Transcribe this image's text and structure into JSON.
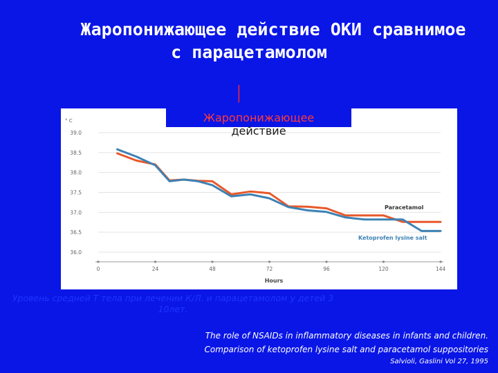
{
  "slide": {
    "title_line1": "Жаропонижающее действие ОКИ сравнимое",
    "title_line2": "с парацетамолом",
    "callout_line1": "Жаропонижающее",
    "callout_line2": "действие",
    "caption": "Уровень средней Т тела при лечении К/Л. и парацетамолом у детей 3 10лет.",
    "reference_line1": "The role of NSAIDs in inflammatory diseases in infants and children.",
    "reference_line2": "Comparison of ketoprofen lysine salt and paracetamol suppositories",
    "reference_line3": "Salvioli, Gaslini Vol 27, 1995"
  },
  "colors": {
    "background": "#0a16e6",
    "paracetamol": "#e8582a",
    "ketoprofen": "#3d82b4"
  },
  "chart_data": {
    "type": "line",
    "title": "",
    "xlabel": "Hours",
    "ylabel": "° C",
    "xlim": [
      0,
      144
    ],
    "ylim": [
      36.0,
      39.0
    ],
    "x_ticks": [
      0,
      24,
      48,
      72,
      96,
      120,
      144
    ],
    "y_ticks": [
      "39.0",
      "38.5",
      "38.0",
      "37.5",
      "37.0",
      "36.5",
      "36.0"
    ],
    "grid": "horizontal",
    "series": [
      {
        "name": "Paracetamol",
        "x": [
          8,
          16,
          24,
          30,
          36,
          42,
          48,
          56,
          64,
          72,
          80,
          88,
          96,
          104,
          112,
          120,
          128,
          136,
          144
        ],
        "y": [
          38.48,
          38.3,
          38.2,
          37.8,
          37.82,
          37.79,
          37.78,
          37.45,
          37.52,
          37.48,
          37.15,
          37.14,
          37.1,
          36.92,
          36.92,
          36.92,
          36.76,
          36.76,
          36.76
        ]
      },
      {
        "name": "Ketoprofen lysine salt",
        "x": [
          8,
          16,
          24,
          30,
          36,
          42,
          48,
          56,
          64,
          72,
          80,
          88,
          96,
          104,
          112,
          120,
          128,
          136,
          144
        ],
        "y": [
          38.58,
          38.4,
          38.18,
          37.78,
          37.82,
          37.78,
          37.68,
          37.4,
          37.45,
          37.35,
          37.13,
          37.05,
          37.01,
          36.87,
          36.82,
          36.82,
          36.82,
          36.53,
          36.53
        ]
      }
    ]
  }
}
